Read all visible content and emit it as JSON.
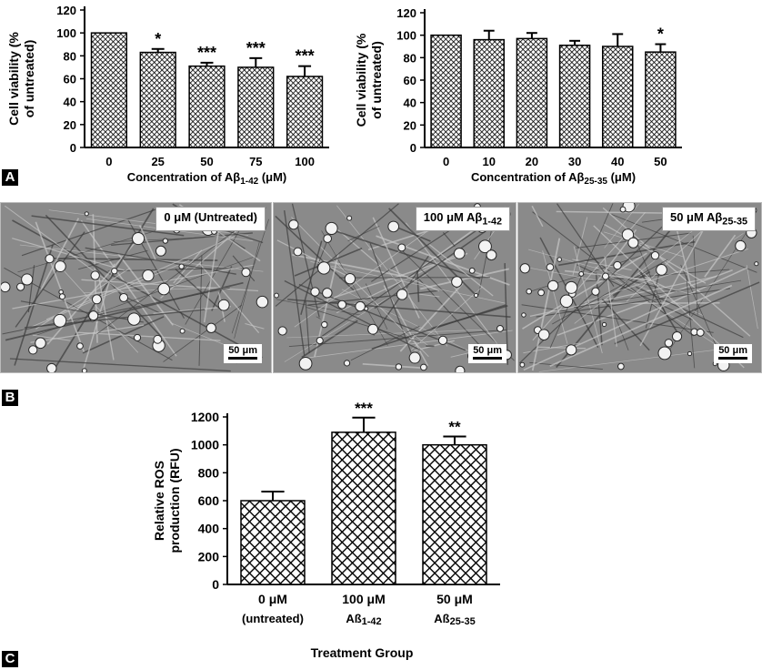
{
  "panels": {
    "a": "A",
    "b": "B",
    "c": "C"
  },
  "colors": {
    "bar_fill": "#000000",
    "bar_pattern_bg": "#ffffff",
    "axis": "#000000"
  },
  "chart_data": [
    {
      "id": "abeta142_viability",
      "type": "bar",
      "categories": [
        "0",
        "25",
        "50",
        "75",
        "100"
      ],
      "values": [
        100,
        83,
        71,
        70,
        62
      ],
      "errors": [
        0,
        3,
        3,
        8,
        9
      ],
      "significance": [
        "",
        "*",
        "***",
        "***",
        "***"
      ],
      "ylabel_line1": "Cell viability (%",
      "ylabel_line2": "of untreated)",
      "xlabel_main": "Concentration of Aβ",
      "xlabel_sub": "1-42",
      "xlabel_unit": " (μM)",
      "ylim": [
        0,
        120
      ],
      "yticks": [
        "0",
        "20",
        "40",
        "60",
        "80",
        "100",
        "120"
      ]
    },
    {
      "id": "abeta2535_viability",
      "type": "bar",
      "categories": [
        "0",
        "10",
        "20",
        "30",
        "40",
        "50"
      ],
      "values": [
        100,
        96,
        97,
        91,
        90,
        85
      ],
      "errors": [
        0,
        8,
        5,
        4,
        11,
        7
      ],
      "significance": [
        "",
        "",
        "",
        "",
        "",
        "*"
      ],
      "ylabel_line1": "Cell viability (%",
      "ylabel_line2": "of untreated)",
      "xlabel_main": "Concentration of Aβ",
      "xlabel_sub": "25-35",
      "xlabel_unit": " (μM)",
      "ylim": [
        0,
        120
      ],
      "yticks": [
        "0",
        "20",
        "40",
        "60",
        "80",
        "100",
        "120"
      ]
    },
    {
      "id": "ros_production",
      "type": "bar",
      "categories": [
        {
          "line1": "0 μM",
          "line2": "(untreated)",
          "sub": ""
        },
        {
          "line1": "100 μM",
          "line2": "Aß",
          "sub": "1-42"
        },
        {
          "line1": "50 μM",
          "line2": "Aß",
          "sub": "25-35"
        }
      ],
      "values": [
        600,
        1090,
        1000
      ],
      "errors": [
        65,
        105,
        60
      ],
      "significance": [
        "",
        "***",
        "**"
      ],
      "ylabel_line1": "Relative ROS",
      "ylabel_line2": "production (RFU)",
      "xlabel": "Treatment Group",
      "ylim": [
        0,
        1200
      ],
      "yticks": [
        "0",
        "200",
        "400",
        "600",
        "800",
        "1000",
        "1200"
      ]
    }
  ],
  "micrographs": [
    {
      "label_main": "0 μM (Untreated)",
      "label_sub": "",
      "scalebar": "50 μm"
    },
    {
      "label_main": "100 μM Aβ",
      "label_sub": "1-42",
      "scalebar": "50 μm"
    },
    {
      "label_main": "50 μM Aβ",
      "label_sub": "25-35",
      "scalebar": "50 μm"
    }
  ]
}
